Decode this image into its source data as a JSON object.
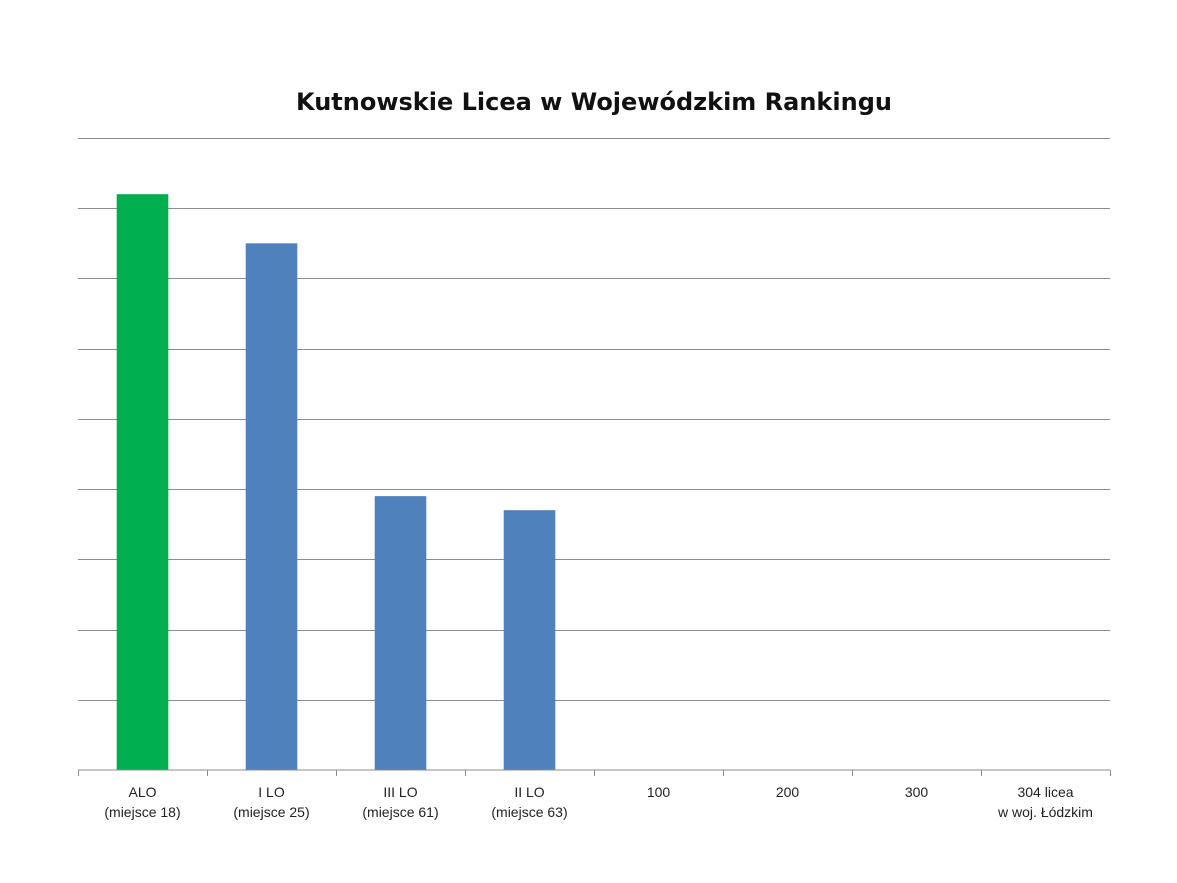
{
  "chart_data": {
    "type": "bar",
    "title": "Kutnowskie Licea w Wojewódzkim Rankingu",
    "xlabel": "",
    "ylabel": "",
    "grid": true,
    "legend": "none",
    "ylim": [
      0,
      9
    ],
    "categories": [
      [
        "ALO",
        "(miejsce 18)"
      ],
      [
        "I LO",
        "(miejsce 25)"
      ],
      [
        "III LO",
        "(miejsce 61)"
      ],
      [
        "II LO",
        "(miejsce 63)"
      ],
      [
        "100"
      ],
      [
        "200"
      ],
      [
        "300"
      ],
      [
        "304 licea",
        "w woj. Łódzkim"
      ]
    ],
    "values": [
      8.2,
      7.5,
      3.9,
      3.7,
      null,
      null,
      null,
      null
    ],
    "colors": [
      "#00b050",
      "#4f81bd",
      "#4f81bd",
      "#4f81bd"
    ]
  }
}
